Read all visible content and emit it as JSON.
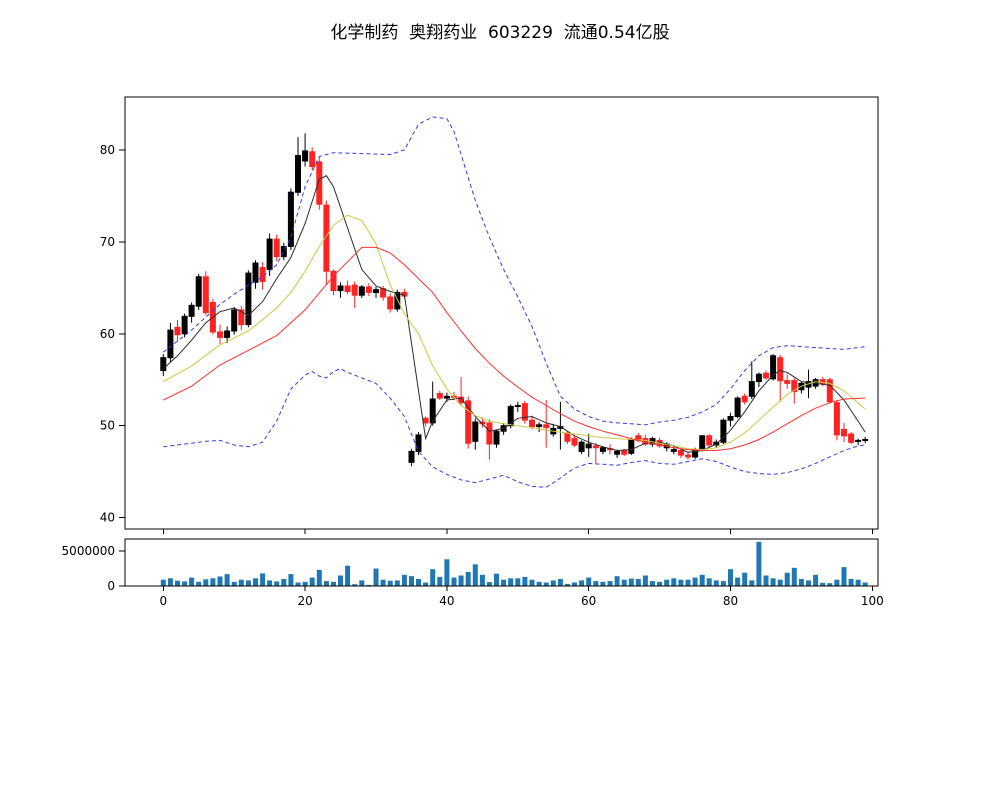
{
  "title": "化学制药  奥翔药业  603229  流通0.54亿股",
  "chart_data": {
    "type": "candlestick",
    "title": "化学制药  奥翔药业  603229  流通0.54亿股",
    "legend_position": "none",
    "grid": false,
    "x_range": [
      -5.4,
      100.8
    ],
    "x_ticks": [
      0,
      20,
      40,
      60,
      80,
      100
    ],
    "price_axis": {
      "ticks": [
        40,
        50,
        60,
        70,
        80
      ],
      "range": [
        38.76,
        85.76
      ]
    },
    "volume_axis": {
      "ticks": [
        0,
        5000000
      ],
      "range": [
        0,
        6700000
      ]
    },
    "colors": {
      "up": "#000000",
      "down": "#ff2222",
      "ma_fast": "#2b2b2b",
      "ma_mid": "#c9c945",
      "ma_slow": "#ff3030",
      "band": "#3a3ae6",
      "volume": "#1f77b4",
      "axis": "#000000"
    },
    "candles": [
      [
        56.0,
        57.8,
        55.4,
        57.4
      ],
      [
        57.4,
        61.2,
        56.9,
        60.4
      ],
      [
        60.7,
        61.5,
        59.2,
        59.9
      ],
      [
        60.0,
        62.2,
        59.6,
        61.9
      ],
      [
        61.9,
        63.4,
        61.2,
        63.1
      ],
      [
        63.0,
        66.5,
        62.6,
        66.2
      ],
      [
        66.2,
        66.8,
        62.0,
        62.3
      ],
      [
        63.4,
        63.8,
        59.9,
        60.2
      ],
      [
        60.2,
        61.0,
        58.9,
        59.6
      ],
      [
        59.6,
        60.8,
        59.0,
        60.3
      ],
      [
        60.3,
        62.9,
        59.9,
        62.6
      ],
      [
        62.6,
        63.0,
        60.4,
        61.0
      ],
      [
        61.0,
        66.9,
        60.7,
        66.6
      ],
      [
        65.6,
        68.0,
        64.9,
        67.7
      ],
      [
        67.2,
        67.8,
        64.8,
        65.7
      ],
      [
        67.0,
        70.9,
        66.3,
        70.3
      ],
      [
        70.3,
        70.8,
        67.9,
        68.4
      ],
      [
        68.4,
        69.9,
        68.0,
        69.5
      ],
      [
        69.5,
        75.8,
        69.1,
        75.4
      ],
      [
        75.4,
        81.4,
        75.0,
        79.4
      ],
      [
        78.8,
        81.8,
        78.2,
        79.9
      ],
      [
        79.8,
        80.3,
        77.8,
        78.2
      ],
      [
        78.7,
        79.2,
        73.5,
        74.1
      ],
      [
        74.0,
        74.5,
        65.3,
        66.8
      ],
      [
        66.8,
        67.0,
        64.2,
        64.7
      ],
      [
        64.7,
        65.6,
        63.9,
        65.2
      ],
      [
        65.2,
        65.8,
        64.3,
        64.6
      ],
      [
        65.3,
        65.7,
        62.8,
        64.2
      ],
      [
        64.2,
        65.3,
        63.9,
        65.1
      ],
      [
        65.1,
        65.5,
        64.1,
        64.5
      ],
      [
        64.5,
        65.1,
        63.9,
        64.8
      ],
      [
        64.9,
        65.2,
        63.6,
        64.0
      ],
      [
        64.0,
        64.4,
        62.3,
        62.7
      ],
      [
        62.7,
        64.8,
        62.4,
        64.5
      ],
      [
        64.5,
        64.9,
        63.8,
        64.1
      ],
      [
        46.0,
        47.5,
        45.6,
        47.2
      ],
      [
        47.2,
        49.3,
        46.8,
        49.0
      ],
      [
        50.8,
        51.0,
        49.9,
        50.3
      ],
      [
        50.3,
        54.8,
        50.0,
        52.9
      ],
      [
        53.5,
        53.8,
        52.8,
        53.0
      ],
      [
        53.0,
        53.6,
        52.6,
        53.2
      ],
      [
        53.2,
        53.7,
        52.8,
        53.1
      ],
      [
        53.1,
        55.3,
        52.2,
        52.5
      ],
      [
        52.7,
        53.2,
        47.5,
        48.1
      ],
      [
        48.3,
        50.8,
        47.4,
        50.4
      ],
      [
        50.4,
        50.9,
        49.8,
        50.2
      ],
      [
        50.3,
        50.7,
        46.3,
        48.0
      ],
      [
        48.0,
        49.6,
        47.6,
        49.4
      ],
      [
        49.4,
        50.3,
        49.0,
        50.0
      ],
      [
        50.0,
        52.3,
        49.7,
        52.1
      ],
      [
        52.1,
        52.6,
        51.5,
        52.2
      ],
      [
        52.4,
        52.7,
        50.2,
        50.6
      ],
      [
        50.6,
        51.1,
        49.6,
        49.9
      ],
      [
        49.9,
        50.4,
        49.3,
        50.1
      ],
      [
        50.1,
        52.8,
        47.6,
        49.8
      ],
      [
        49.1,
        50.2,
        48.8,
        49.7
      ],
      [
        49.7,
        52.6,
        47.4,
        49.9
      ],
      [
        49.2,
        49.4,
        48.0,
        48.3
      ],
      [
        48.6,
        48.9,
        47.7,
        47.9
      ],
      [
        47.2,
        48.4,
        46.9,
        48.2
      ],
      [
        47.6,
        49.1,
        46.6,
        48.0
      ],
      [
        47.8,
        48.1,
        45.9,
        47.6
      ],
      [
        47.2,
        47.8,
        46.9,
        47.6
      ],
      [
        47.5,
        48.0,
        46.9,
        47.4
      ],
      [
        46.9,
        47.4,
        46.5,
        47.2
      ],
      [
        47.3,
        47.5,
        46.7,
        46.9
      ],
      [
        47.0,
        48.7,
        46.8,
        48.5
      ],
      [
        48.9,
        49.2,
        48.2,
        48.4
      ],
      [
        48.6,
        49.0,
        47.8,
        48.0
      ],
      [
        48.0,
        48.8,
        47.7,
        48.6
      ],
      [
        48.4,
        48.7,
        47.6,
        47.8
      ],
      [
        47.6,
        48.2,
        47.2,
        48.0
      ],
      [
        47.2,
        47.9,
        46.9,
        47.4
      ],
      [
        47.3,
        47.5,
        46.5,
        46.8
      ],
      [
        46.8,
        47.2,
        46.3,
        46.6
      ],
      [
        46.6,
        47.6,
        46.4,
        47.4
      ],
      [
        47.4,
        49.0,
        47.2,
        48.9
      ],
      [
        48.9,
        49.1,
        47.7,
        47.9
      ],
      [
        47.9,
        48.5,
        47.6,
        48.2
      ],
      [
        48.2,
        50.8,
        48.0,
        50.6
      ],
      [
        50.6,
        51.4,
        49.9,
        51.0
      ],
      [
        51.0,
        53.2,
        50.8,
        53.0
      ],
      [
        53.2,
        53.5,
        52.3,
        52.6
      ],
      [
        53.2,
        57.0,
        52.9,
        54.8
      ],
      [
        54.8,
        55.8,
        54.2,
        55.6
      ],
      [
        55.7,
        56.0,
        55.0,
        55.2
      ],
      [
        55.1,
        57.8,
        54.9,
        57.6
      ],
      [
        57.4,
        57.7,
        52.6,
        54.9
      ],
      [
        54.9,
        55.6,
        54.0,
        54.6
      ],
      [
        54.9,
        55.2,
        52.4,
        53.7
      ],
      [
        53.9,
        54.8,
        53.5,
        54.6
      ],
      [
        54.2,
        56.1,
        53.0,
        54.8
      ],
      [
        54.3,
        55.2,
        54.0,
        55.0
      ],
      [
        55.0,
        55.3,
        54.3,
        54.6
      ],
      [
        55.0,
        55.2,
        52.4,
        52.6
      ],
      [
        52.5,
        52.8,
        48.4,
        49.0
      ],
      [
        49.6,
        50.3,
        48.2,
        48.9
      ],
      [
        49.1,
        49.3,
        48.0,
        48.2
      ],
      [
        48.3,
        48.6,
        47.9,
        48.4
      ],
      [
        48.4,
        48.8,
        48.1,
        48.5
      ]
    ],
    "volume": [
      900000,
      1100000,
      750000,
      650000,
      1200000,
      600000,
      950000,
      1100000,
      1350000,
      1700000,
      600000,
      900000,
      800000,
      1100000,
      1800000,
      800000,
      650000,
      1000000,
      1700000,
      500000,
      600000,
      1200000,
      2300000,
      700000,
      600000,
      1500000,
      2900000,
      250000,
      800000,
      150000,
      2500000,
      900000,
      750000,
      800000,
      1600000,
      1400000,
      1000000,
      500000,
      2400000,
      1300000,
      3800000,
      1200000,
      1500000,
      2000000,
      3100000,
      1600000,
      550000,
      1750000,
      900000,
      1100000,
      1100000,
      1300000,
      900000,
      600000,
      500000,
      800000,
      1000000,
      300000,
      500000,
      800000,
      1200000,
      700000,
      600000,
      700000,
      1400000,
      900000,
      1050000,
      1000000,
      1500000,
      700000,
      600000,
      900000,
      1100000,
      900000,
      900000,
      1200000,
      1600000,
      1100000,
      800000,
      700000,
      2400000,
      1200000,
      1900000,
      800000,
      6300000,
      1500000,
      1100000,
      900000,
      1900000,
      2600000,
      1000000,
      800000,
      1600000,
      450000,
      400000,
      900000,
      2700000,
      1000000,
      900000,
      500000
    ],
    "overlays": [
      {
        "name": "ma-fast",
        "color_key": "ma_fast",
        "dash": false,
        "x": [
          0,
          2,
          4,
          6,
          8,
          10,
          12,
          14,
          16,
          18,
          20,
          22,
          23,
          24,
          26,
          28,
          30,
          32,
          34,
          37,
          38,
          40,
          42,
          44,
          46,
          48,
          50,
          52,
          54,
          56,
          58,
          60,
          62,
          64,
          66,
          68,
          70,
          72,
          74,
          76,
          78,
          80,
          82,
          84,
          86,
          87,
          88,
          90,
          92,
          94,
          96,
          98,
          99
        ],
        "y": [
          56.2,
          57.6,
          59.3,
          61.2,
          62.4,
          62.8,
          62.0,
          63.5,
          66.0,
          68.3,
          72.0,
          76.8,
          77.2,
          76.0,
          71.5,
          67.0,
          65.2,
          64.6,
          64.2,
          48.6,
          50.5,
          52.8,
          53.0,
          51.0,
          49.4,
          49.7,
          50.8,
          51.0,
          50.3,
          49.9,
          48.9,
          48.2,
          47.7,
          47.3,
          47.4,
          48.1,
          48.2,
          47.8,
          47.1,
          47.3,
          48.0,
          49.5,
          51.5,
          53.8,
          55.5,
          56.0,
          55.8,
          54.8,
          54.6,
          54.4,
          52.8,
          50.5,
          49.3
        ]
      },
      {
        "name": "ma-mid",
        "color_key": "ma_mid",
        "dash": false,
        "x": [
          0,
          4,
          8,
          12,
          16,
          18,
          20,
          22,
          24,
          26,
          28,
          30,
          32,
          34,
          36,
          38,
          40,
          42,
          44,
          46,
          48,
          50,
          52,
          54,
          56,
          58,
          60,
          62,
          64,
          66,
          68,
          70,
          72,
          74,
          76,
          78,
          80,
          82,
          84,
          86,
          88,
          90,
          92,
          94,
          96,
          98,
          99
        ],
        "y": [
          54.8,
          56.5,
          58.8,
          60.3,
          62.8,
          64.5,
          66.8,
          69.5,
          71.8,
          72.9,
          72.3,
          69.8,
          65.3,
          62.2,
          60.0,
          56.5,
          54.0,
          52.2,
          51.1,
          50.5,
          50.2,
          50.0,
          49.8,
          49.5,
          49.3,
          49.1,
          48.9,
          48.7,
          48.6,
          48.5,
          48.4,
          48.1,
          47.8,
          47.5,
          47.4,
          47.6,
          48.2,
          49.2,
          50.6,
          52.0,
          53.4,
          54.3,
          54.8,
          54.6,
          53.8,
          52.5,
          51.8
        ]
      },
      {
        "name": "ma-slow",
        "color_key": "ma_slow",
        "dash": false,
        "x": [
          0,
          4,
          8,
          12,
          16,
          20,
          24,
          28,
          30,
          32,
          34,
          36,
          38,
          40,
          42,
          44,
          46,
          48,
          50,
          52,
          54,
          56,
          58,
          60,
          62,
          64,
          66,
          68,
          70,
          72,
          74,
          76,
          78,
          80,
          82,
          84,
          86,
          88,
          90,
          92,
          94,
          96,
          99
        ],
        "y": [
          52.8,
          54.3,
          56.6,
          58.2,
          59.8,
          62.6,
          66.3,
          69.4,
          69.4,
          68.8,
          67.5,
          66.0,
          64.5,
          62.3,
          60.3,
          58.4,
          56.8,
          55.4,
          54.2,
          53.1,
          52.2,
          51.3,
          50.5,
          49.9,
          49.4,
          49.0,
          48.6,
          48.2,
          47.9,
          47.6,
          47.4,
          47.3,
          47.3,
          47.5,
          47.9,
          48.5,
          49.3,
          50.2,
          51.1,
          51.9,
          52.5,
          52.9,
          53.0
        ]
      },
      {
        "name": "band-upper",
        "color_key": "band",
        "dash": true,
        "x": [
          0,
          2,
          4,
          6,
          8,
          10,
          12,
          14,
          16,
          18,
          20,
          22,
          24,
          28,
          32,
          34,
          36,
          38,
          40,
          41,
          42,
          44,
          46,
          48,
          50,
          52,
          54,
          56,
          58,
          60,
          62,
          64,
          66,
          68,
          70,
          72,
          74,
          76,
          78,
          80,
          82,
          84,
          86,
          88,
          90,
          92,
          94,
          96,
          98,
          99
        ],
        "y": [
          58.0,
          59.2,
          60.4,
          61.8,
          63.2,
          64.3,
          65.3,
          66.2,
          67.5,
          70.5,
          76.0,
          79.3,
          79.7,
          79.6,
          79.5,
          80.0,
          82.8,
          83.6,
          83.4,
          82.0,
          79.5,
          74.5,
          70.5,
          67.0,
          64.0,
          60.8,
          56.8,
          53.2,
          51.8,
          51.0,
          50.5,
          50.3,
          50.2,
          50.1,
          50.4,
          50.6,
          50.9,
          51.5,
          52.3,
          54.0,
          56.0,
          57.6,
          58.5,
          58.7,
          58.6,
          58.5,
          58.4,
          58.3,
          58.5,
          58.6
        ]
      },
      {
        "name": "band-lower",
        "color_key": "band",
        "dash": true,
        "x": [
          0,
          2,
          4,
          6,
          8,
          10,
          12,
          14,
          16,
          18,
          20,
          21,
          22,
          23,
          24,
          25,
          26,
          28,
          30,
          32,
          34,
          36,
          38,
          40,
          42,
          44,
          46,
          48,
          50,
          52,
          54,
          56,
          58,
          60,
          62,
          64,
          66,
          68,
          70,
          72,
          74,
          76,
          78,
          80,
          82,
          84,
          86,
          88,
          90,
          92,
          94,
          96,
          98,
          99
        ],
        "y": [
          47.7,
          47.9,
          48.1,
          48.3,
          48.4,
          47.9,
          47.7,
          48.2,
          50.5,
          54.0,
          55.5,
          55.9,
          55.4,
          55.2,
          55.9,
          56.2,
          55.8,
          55.2,
          54.6,
          53.0,
          51.0,
          47.2,
          45.5,
          44.7,
          44.1,
          43.8,
          44.2,
          44.6,
          43.9,
          43.4,
          43.3,
          44.3,
          45.4,
          45.9,
          45.8,
          45.7,
          46.0,
          46.2,
          45.9,
          45.8,
          46.1,
          46.4,
          46.1,
          45.5,
          45.0,
          44.8,
          44.7,
          44.9,
          45.3,
          45.9,
          46.6,
          47.3,
          47.8,
          47.9
        ]
      }
    ]
  }
}
